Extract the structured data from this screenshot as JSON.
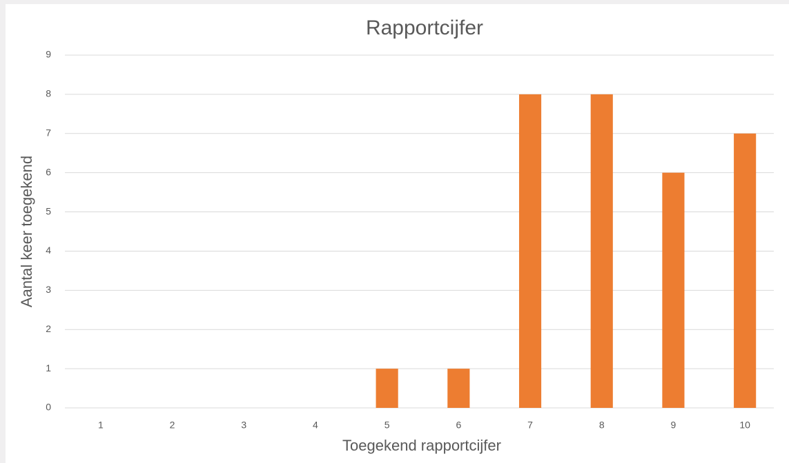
{
  "chart_data": {
    "type": "bar",
    "title": "Rapportcijfer",
    "x_label": "Toegekend rapportcijfer",
    "y_label": "Aantal keer toegekend",
    "categories": [
      "1",
      "2",
      "3",
      "4",
      "5",
      "6",
      "7",
      "8",
      "9",
      "10"
    ],
    "values": [
      0,
      0,
      0,
      0,
      1,
      1,
      8,
      8,
      6,
      7
    ],
    "color": "#ed7d31",
    "ylim": [
      0,
      9
    ],
    "yticks": [
      0,
      1,
      2,
      3,
      4,
      5,
      6,
      7,
      8,
      9
    ],
    "grid": true
  }
}
